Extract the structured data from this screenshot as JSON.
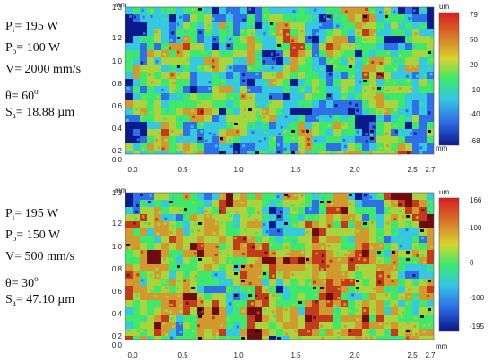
{
  "panels": [
    {
      "params": {
        "pi_label": "P",
        "pi_sub": "i",
        "pi_value": "= 195 W",
        "po_label": "P",
        "po_sub": "o",
        "po_value": "= 100 W",
        "v_text": "V= 2000 mm/s",
        "theta_text": "θ= 60",
        "theta_sup": "o",
        "sa_label": "S",
        "sa_sub": "a",
        "sa_value": "= 18.88 µm"
      },
      "map": {
        "y_unit": "mm",
        "x_unit": "mm",
        "y_ticks": [
          "1.3",
          "1.2",
          "1.0",
          "0.8",
          "0.6",
          "0.4",
          "0.2",
          "0.0"
        ],
        "x_ticks": [
          "0.0",
          "0.5",
          "1.0",
          "1.5",
          "2.0",
          "2.5",
          "2.7"
        ],
        "colorbar_unit": "um",
        "colorbar_ticks": [
          "79",
          "50",
          "20",
          "-10",
          "-40",
          "-68"
        ],
        "palette": [
          "#0a1a8c",
          "#2f6fe8",
          "#35c8e0",
          "#3de86a",
          "#a9d43c",
          "#d29a2e",
          "#c43a1c",
          "#6e0c10"
        ],
        "bias": -0.22,
        "seed": 17
      }
    },
    {
      "params": {
        "pi_label": "P",
        "pi_sub": "i",
        "pi_value": "= 195 W",
        "po_label": "P",
        "po_sub": "o",
        "po_value": "= 150 W",
        "v_text": "V= 500 mm/s",
        "theta_text": "θ= 30",
        "theta_sup": "o",
        "sa_label": "S",
        "sa_sub": "a",
        "sa_value": "= 47.10 µm"
      },
      "map": {
        "y_unit": "mm",
        "x_unit": "mm",
        "y_ticks": [
          "1.3",
          "1.2",
          "1.0",
          "0.8",
          "0.6",
          "0.4",
          "0.2",
          "0.0"
        ],
        "x_ticks": [
          "0.0",
          "0.5",
          "1.0",
          "1.5",
          "2.0",
          "2.5",
          "2.7"
        ],
        "colorbar_unit": "um",
        "colorbar_ticks": [
          "166",
          "100",
          "0",
          "-100",
          "-195"
        ],
        "palette": [
          "#0a1a8c",
          "#2f6fe8",
          "#35c8e0",
          "#3de86a",
          "#a9d43c",
          "#d29a2e",
          "#c43a1c",
          "#6e0c10"
        ],
        "bias": 0.18,
        "seed": 91
      }
    }
  ]
}
